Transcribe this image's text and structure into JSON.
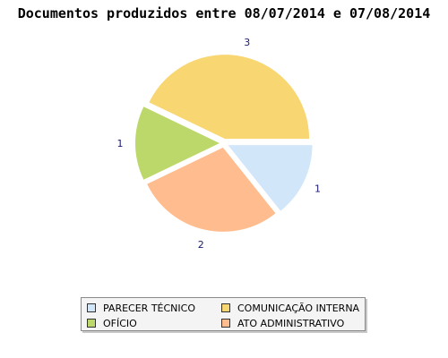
{
  "chart_data": {
    "type": "pie",
    "title": "Documentos produzidos entre 08/07/2014 e 07/08/2014",
    "slices": [
      {
        "name": "PARECER TÉCNICO",
        "value": 1,
        "label": "1",
        "color": "#d2e6fa"
      },
      {
        "name": "ATO ADMINISTRATIVO",
        "value": 2,
        "label": "2",
        "color": "#ffbc8e"
      },
      {
        "name": "OFÍCIO",
        "value": 1,
        "label": "1",
        "color": "#bdd86a"
      },
      {
        "name": "COMUNICAÇÃO INTERNA",
        "value": 3,
        "label": "3",
        "color": "#f8d672"
      }
    ],
    "legend_position": "bottom",
    "exploded": true
  },
  "legend": {
    "items": [
      {
        "label": "PARECER TÉCNICO",
        "color": "#d2e6fa"
      },
      {
        "label": "COMUNICAÇÃO INTERNA",
        "color": "#f8d672"
      },
      {
        "label": "OFÍCIO",
        "color": "#bdd86a"
      },
      {
        "label": "ATO ADMINISTRATIVO",
        "color": "#ffbc8e"
      }
    ]
  }
}
